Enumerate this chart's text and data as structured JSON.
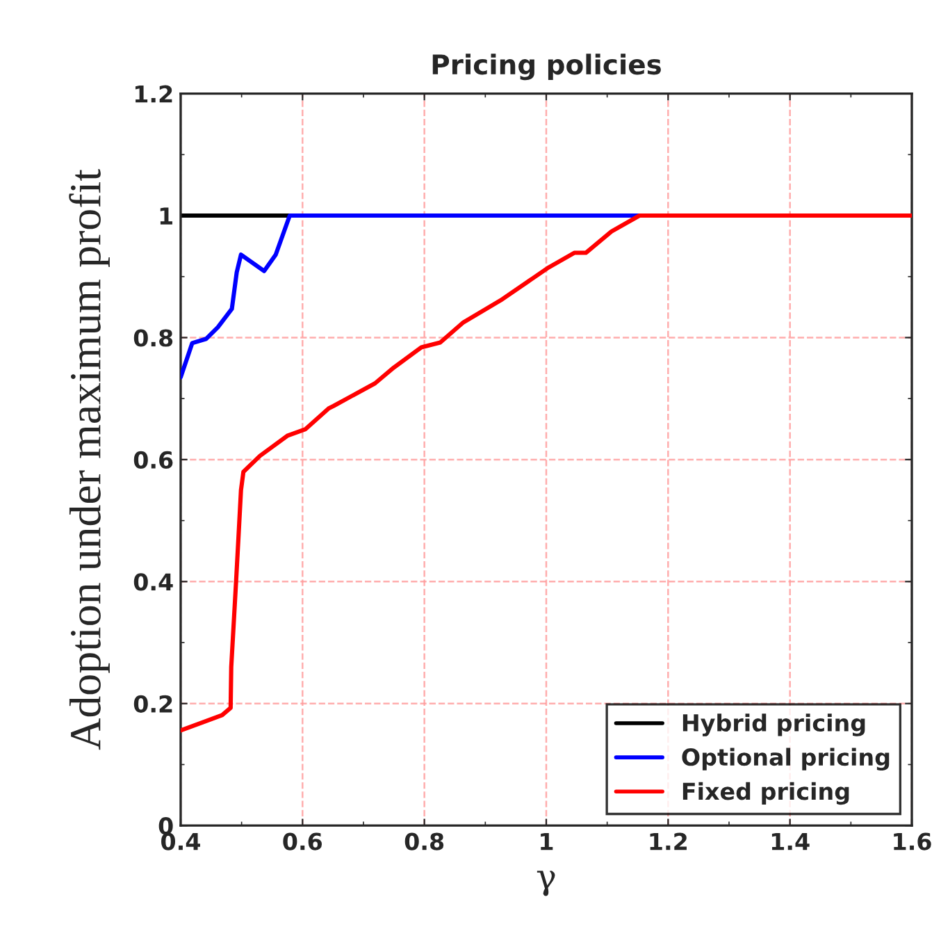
{
  "chart_data": {
    "type": "line",
    "title": "Pricing policies",
    "xlabel": "γ",
    "ylabel": "Adoption under maximum profit",
    "xlim": [
      0.4,
      1.6
    ],
    "ylim": [
      0,
      1.2
    ],
    "xticks": [
      0.4,
      0.6,
      0.8,
      1,
      1.2,
      1.4,
      1.6
    ],
    "yticks": [
      0,
      0.2,
      0.4,
      0.6,
      0.8,
      1,
      1.2
    ],
    "grid": true,
    "legend": "bottom right",
    "line_style": "solid",
    "marker": "none",
    "series": [
      {
        "name": "Hybrid pricing",
        "color": "#000000",
        "x": [
          0.4,
          0.579
        ],
        "values": [
          1.0,
          1.0
        ]
      },
      {
        "name": "Optional pricing",
        "color": "#0000ff",
        "x": [
          0.4,
          0.419,
          0.442,
          0.461,
          0.484,
          0.492,
          0.499,
          0.537,
          0.556,
          0.579,
          1.153
        ],
        "values": [
          0.735,
          0.791,
          0.798,
          0.817,
          0.847,
          0.907,
          0.936,
          0.909,
          0.936,
          1.0,
          1.0
        ]
      },
      {
        "name": "Fixed pricing",
        "color": "#ff0000",
        "x": [
          0.4,
          0.438,
          0.468,
          0.482,
          0.483,
          0.491,
          0.495,
          0.499,
          0.503,
          0.53,
          0.575,
          0.605,
          0.643,
          0.651,
          0.719,
          0.75,
          0.795,
          0.826,
          0.864,
          0.925,
          1.004,
          1.046,
          1.065,
          1.107,
          1.153,
          1.6
        ],
        "values": [
          0.156,
          0.17,
          0.181,
          0.193,
          0.26,
          0.401,
          0.475,
          0.55,
          0.58,
          0.606,
          0.639,
          0.65,
          0.684,
          0.688,
          0.725,
          0.751,
          0.784,
          0.792,
          0.825,
          0.861,
          0.915,
          0.939,
          0.939,
          0.974,
          1.0,
          1.0
        ]
      }
    ]
  }
}
